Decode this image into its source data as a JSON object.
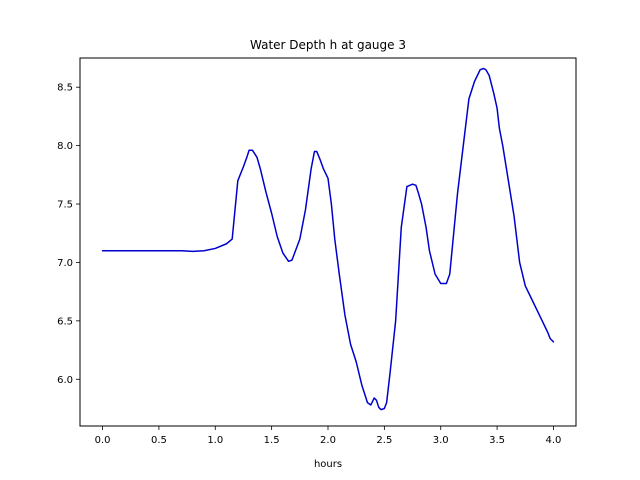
{
  "chart_data": {
    "type": "line",
    "title": "Water Depth h at gauge 3",
    "xlabel": "hours",
    "ylabel": "",
    "xlim": [
      -0.2,
      4.2
    ],
    "ylim": [
      5.6,
      8.75
    ],
    "xticks": [
      0.0,
      0.5,
      1.0,
      1.5,
      2.0,
      2.5,
      3.0,
      3.5,
      4.0
    ],
    "xtick_labels": [
      "0.0",
      "0.5",
      "1.0",
      "1.5",
      "2.0",
      "2.5",
      "3.0",
      "3.5",
      "4.0"
    ],
    "yticks": [
      6.0,
      6.5,
      7.0,
      7.5,
      8.0,
      8.5
    ],
    "ytick_labels": [
      "6.0",
      "6.5",
      "7.0",
      "7.5",
      "8.0",
      "8.5"
    ],
    "grid": false,
    "series": [
      {
        "color": "#0000cc",
        "x": [
          0.0,
          0.5,
          0.7,
          0.8,
          0.9,
          1.0,
          1.1,
          1.15,
          1.17,
          1.2,
          1.25,
          1.28,
          1.3,
          1.33,
          1.37,
          1.4,
          1.45,
          1.5,
          1.55,
          1.6,
          1.65,
          1.68,
          1.7,
          1.75,
          1.8,
          1.85,
          1.88,
          1.9,
          1.93,
          1.96,
          2.0,
          2.03,
          2.06,
          2.1,
          2.15,
          2.2,
          2.25,
          2.3,
          2.35,
          2.38,
          2.41,
          2.43,
          2.45,
          2.47,
          2.5,
          2.52,
          2.55,
          2.6,
          2.65,
          2.7,
          2.75,
          2.78,
          2.8,
          2.83,
          2.87,
          2.9,
          2.95,
          3.0,
          3.05,
          3.08,
          3.1,
          3.13,
          3.15,
          3.2,
          3.25,
          3.3,
          3.35,
          3.38,
          3.4,
          3.43,
          3.47,
          3.5,
          3.52,
          3.55,
          3.6,
          3.65,
          3.7,
          3.75,
          3.8,
          3.85,
          3.9,
          3.93,
          3.95,
          3.97,
          4.0
        ],
        "y": [
          7.1,
          7.1,
          7.1,
          7.095,
          7.1,
          7.12,
          7.16,
          7.2,
          7.4,
          7.7,
          7.82,
          7.9,
          7.96,
          7.96,
          7.9,
          7.8,
          7.6,
          7.42,
          7.22,
          7.08,
          7.01,
          7.02,
          7.07,
          7.2,
          7.45,
          7.8,
          7.95,
          7.95,
          7.88,
          7.8,
          7.72,
          7.5,
          7.2,
          6.9,
          6.55,
          6.3,
          6.15,
          5.95,
          5.8,
          5.78,
          5.84,
          5.82,
          5.76,
          5.74,
          5.75,
          5.8,
          6.05,
          6.5,
          7.3,
          7.65,
          7.67,
          7.66,
          7.6,
          7.5,
          7.3,
          7.1,
          6.9,
          6.82,
          6.82,
          6.9,
          7.1,
          7.4,
          7.6,
          8.0,
          8.4,
          8.55,
          8.65,
          8.66,
          8.65,
          8.6,
          8.45,
          8.32,
          8.15,
          8.0,
          7.7,
          7.4,
          7.0,
          6.8,
          6.7,
          6.6,
          6.5,
          6.44,
          6.4,
          6.35,
          6.32
        ]
      }
    ]
  }
}
